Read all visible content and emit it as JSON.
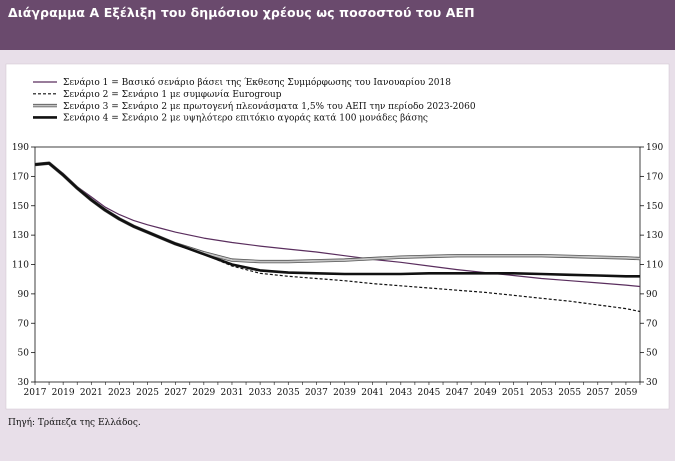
{
  "title": "Διάγραμμα Α  Εξέλιξη του δημόσιου χρέους ως ποσοστού του ΑΕΠ",
  "source": "Πηγή: Τράπεζα της Ελλάδος.",
  "chart_data": {
    "type": "line",
    "title": "Διάγραμμα Α  Εξέλιξη του δημόσιου χρέους ως ποσοστού του ΑΕΠ",
    "xlabel": "",
    "ylabel": "",
    "xlim": [
      2017,
      2060
    ],
    "ylim": [
      30,
      190
    ],
    "y_ticks": [
      30,
      50,
      70,
      90,
      110,
      130,
      150,
      170,
      190
    ],
    "x_ticks": [
      2017,
      2019,
      2021,
      2023,
      2025,
      2027,
      2029,
      2031,
      2033,
      2035,
      2037,
      2039,
      2041,
      2043,
      2045,
      2047,
      2049,
      2051,
      2053,
      2055,
      2057,
      2059
    ],
    "grid": false,
    "secondary_y_axis": true,
    "legend_position": "top",
    "series": [
      {
        "name": "Σενάριο 1 = Βασικό σενάριο βάσει της Έκθεσης Συμμόρφωσης του Ιανουαρίου 2018",
        "style": "solid-thin",
        "color": "#5a2e5e",
        "points": [
          [
            2017,
            178
          ],
          [
            2018,
            179
          ],
          [
            2019,
            172
          ],
          [
            2020,
            163
          ],
          [
            2021,
            156
          ],
          [
            2022,
            149
          ],
          [
            2023,
            144
          ],
          [
            2024,
            140
          ],
          [
            2025,
            137
          ],
          [
            2026,
            134.5
          ],
          [
            2027,
            132
          ],
          [
            2029,
            128
          ],
          [
            2031,
            125
          ],
          [
            2033,
            122.5
          ],
          [
            2035,
            120.5
          ],
          [
            2037,
            118.5
          ],
          [
            2039,
            116
          ],
          [
            2041,
            113.5
          ],
          [
            2043,
            111.5
          ],
          [
            2045,
            109
          ],
          [
            2047,
            106.5
          ],
          [
            2049,
            104.5
          ],
          [
            2051,
            102.5
          ],
          [
            2053,
            100.5
          ],
          [
            2055,
            99
          ],
          [
            2057,
            97.5
          ],
          [
            2059,
            96
          ],
          [
            2060,
            95
          ]
        ]
      },
      {
        "name": "Σενάριο 2 = Σενάριο 1 με συμφωνία Eurogroup",
        "style": "dashed",
        "color": "#111111",
        "points": [
          [
            2017,
            178
          ],
          [
            2018,
            179
          ],
          [
            2019,
            171
          ],
          [
            2020,
            162
          ],
          [
            2021,
            154
          ],
          [
            2022,
            147
          ],
          [
            2023,
            141
          ],
          [
            2024,
            136
          ],
          [
            2025,
            132
          ],
          [
            2026,
            128
          ],
          [
            2027,
            124
          ],
          [
            2029,
            117
          ],
          [
            2031,
            109
          ],
          [
            2033,
            104
          ],
          [
            2035,
            102
          ],
          [
            2037,
            100.5
          ],
          [
            2039,
            99
          ],
          [
            2041,
            97
          ],
          [
            2043,
            95.5
          ],
          [
            2045,
            94
          ],
          [
            2047,
            92.5
          ],
          [
            2049,
            91
          ],
          [
            2051,
            89
          ],
          [
            2053,
            87
          ],
          [
            2055,
            85
          ],
          [
            2057,
            82.5
          ],
          [
            2059,
            80
          ],
          [
            2060,
            78
          ]
        ]
      },
      {
        "name": "Σενάριο 3 = Σενάριο 2 με πρωτογενή πλεονάσματα 1,5% του ΑΕΠ την περίοδο 2023-2060",
        "style": "double-gray",
        "color": "#c4c4c4",
        "points": [
          [
            2017,
            178
          ],
          [
            2018,
            179
          ],
          [
            2019,
            171
          ],
          [
            2020,
            162
          ],
          [
            2021,
            154
          ],
          [
            2022,
            147
          ],
          [
            2023,
            141
          ],
          [
            2024,
            136
          ],
          [
            2025,
            132
          ],
          [
            2026,
            128
          ],
          [
            2027,
            124
          ],
          [
            2029,
            118
          ],
          [
            2031,
            113
          ],
          [
            2033,
            112
          ],
          [
            2035,
            112
          ],
          [
            2037,
            112.5
          ],
          [
            2039,
            113
          ],
          [
            2041,
            114
          ],
          [
            2043,
            115
          ],
          [
            2045,
            115.5
          ],
          [
            2047,
            116
          ],
          [
            2049,
            116
          ],
          [
            2051,
            116
          ],
          [
            2053,
            116
          ],
          [
            2055,
            115.5
          ],
          [
            2057,
            115
          ],
          [
            2059,
            114.5
          ],
          [
            2060,
            114
          ]
        ]
      },
      {
        "name": "Σενάριο 4 = Σενάριο 2 με υψηλότερο επιτόκιο αγοράς κατά 100 μονάδες βάσης",
        "style": "solid-thick",
        "color": "#111111",
        "points": [
          [
            2017,
            178
          ],
          [
            2018,
            179
          ],
          [
            2019,
            171
          ],
          [
            2020,
            162
          ],
          [
            2021,
            154
          ],
          [
            2022,
            147
          ],
          [
            2023,
            141
          ],
          [
            2024,
            136
          ],
          [
            2025,
            132
          ],
          [
            2026,
            128
          ],
          [
            2027,
            124
          ],
          [
            2029,
            117
          ],
          [
            2031,
            110
          ],
          [
            2033,
            106
          ],
          [
            2035,
            104.5
          ],
          [
            2037,
            104
          ],
          [
            2039,
            103.5
          ],
          [
            2041,
            103.5
          ],
          [
            2043,
            103.5
          ],
          [
            2045,
            104
          ],
          [
            2047,
            104
          ],
          [
            2049,
            104
          ],
          [
            2051,
            104
          ],
          [
            2053,
            103.5
          ],
          [
            2055,
            103
          ],
          [
            2057,
            102.5
          ],
          [
            2059,
            102
          ],
          [
            2060,
            102
          ]
        ]
      }
    ]
  }
}
